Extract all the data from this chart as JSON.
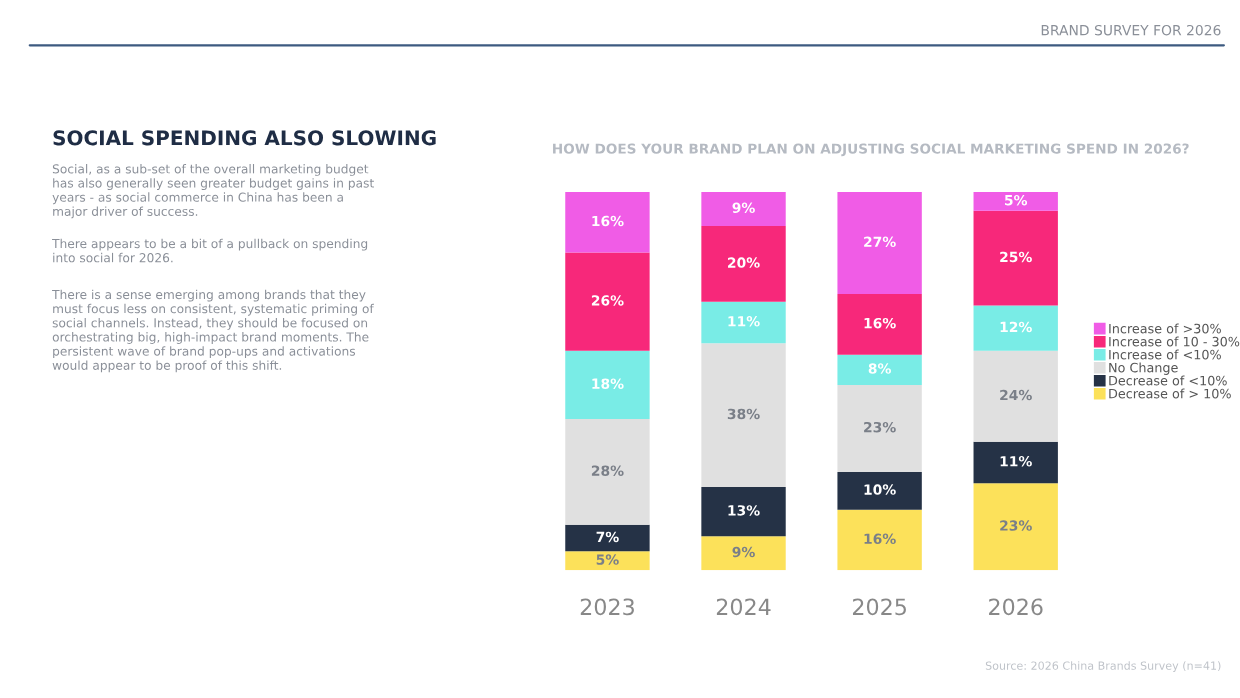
{
  "chart_data": {
    "type": "bar",
    "stacked": true,
    "title": "HOW DOES YOUR BRAND PLAN ON ADJUSTING SOCIAL MARKETING SPEND IN 2026?",
    "categories": [
      "2023",
      "2024",
      "2025",
      "2026"
    ],
    "series": [
      {
        "name": "Decrease of > 10%",
        "color": "#fce15a",
        "values": [
          5,
          9,
          16,
          23
        ],
        "value_labels": [
          "5%",
          "9%",
          "16%",
          "23%"
        ]
      },
      {
        "name": "Decrease of <10%",
        "color": "#253246",
        "values": [
          7,
          13,
          10,
          11
        ],
        "value_labels": [
          "7%",
          "13%",
          "10%",
          "11%"
        ]
      },
      {
        "name": "No Change",
        "color": "#e0e0e0",
        "values": [
          28,
          38,
          23,
          24
        ],
        "value_labels": [
          "28%",
          "38%",
          "23%",
          "24%"
        ]
      },
      {
        "name": "Increase of <10%",
        "color": "#79ece6",
        "values": [
          18,
          11,
          8,
          12
        ],
        "value_labels": [
          "18%",
          "11%",
          "8%",
          "12%"
        ]
      },
      {
        "name": "Increase of 10 - 30%",
        "color": "#f7287a",
        "values": [
          26,
          20,
          16,
          25
        ],
        "value_labels": [
          "26%",
          "20%",
          "16%",
          "25%"
        ]
      },
      {
        "name": "Increase of >30%",
        "color": "#f05ce6",
        "values": [
          16,
          9,
          27,
          5
        ],
        "value_labels": [
          "16%",
          "9%",
          "27%",
          "5%"
        ]
      }
    ],
    "legend": "right",
    "annotations": [
      "BRAND SURVEY FOR 2026",
      "SOCIAL SPENDING ALSO SLOWING",
      "Social, as a sub-set of the overall marketing budget\nhas also generally seen greater budget gains in past\nyears - as social commerce in China has been a\nmajor driver of success.",
      "There appears to be a bit of a pullback on spending\ninto social for 2026.",
      "There is a sense emerging among brands that they\nmust focus less on consistent, systematic priming of\nsocial channels. Instead, they should be focused on\norchestrating big, high-impact brand moments. The\npersistent wave of brand pop-ups and activations\nwould appear to be proof of this shift.",
      "Source: 2026 China Brands Survey (n=41)"
    ]
  }
}
